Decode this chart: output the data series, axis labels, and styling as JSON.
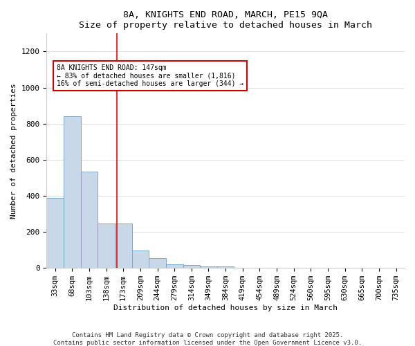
{
  "title": "8A, KNIGHTS END ROAD, MARCH, PE15 9QA",
  "subtitle": "Size of property relative to detached houses in March",
  "xlabel": "Distribution of detached houses by size in March",
  "ylabel": "Number of detached properties",
  "bar_labels": [
    "33sqm",
    "68sqm",
    "103sqm",
    "138sqm",
    "173sqm",
    "209sqm",
    "244sqm",
    "279sqm",
    "314sqm",
    "349sqm",
    "384sqm",
    "419sqm",
    "454sqm",
    "489sqm",
    "524sqm",
    "560sqm",
    "595sqm",
    "630sqm",
    "665sqm",
    "700sqm",
    "735sqm"
  ],
  "bar_values": [
    390,
    840,
    535,
    245,
    245,
    95,
    55,
    20,
    15,
    10,
    7,
    0,
    0,
    0,
    0,
    0,
    0,
    0,
    0,
    0,
    0
  ],
  "bar_color": "#c8d8e8",
  "bar_edge_color": "#7aaac8",
  "red_line_x": 3.62,
  "annotation_line1": "8A KNIGHTS END ROAD: 147sqm",
  "annotation_line2": "← 83% of detached houses are smaller (1,816)",
  "annotation_line3": "16% of semi-detached houses are larger (344) →",
  "annotation_box_color": "#ffffff",
  "annotation_box_edge": "#cc0000",
  "ylim": [
    0,
    1300
  ],
  "yticks": [
    0,
    200,
    400,
    600,
    800,
    1000,
    1200
  ],
  "background_color": "#ffffff",
  "plot_background": "#ffffff",
  "grid_color": "#e0e0e0",
  "footer1": "Contains HM Land Registry data © Crown copyright and database right 2025.",
  "footer2": "Contains public sector information licensed under the Open Government Licence v3.0."
}
